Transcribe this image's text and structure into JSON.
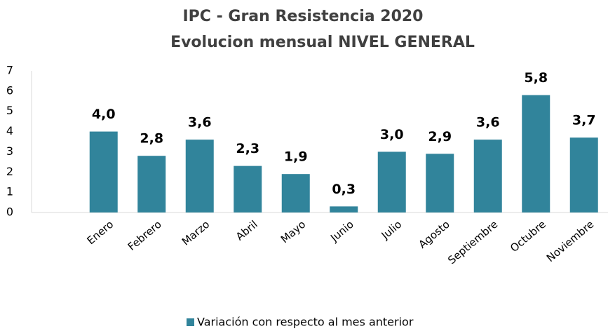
{
  "chart_data": {
    "type": "bar",
    "title": "IPC - Gran Resistencia  2020",
    "subtitle": "Evolucion mensual NIVEL GENERAL",
    "categories": [
      null,
      "Enero",
      "Febrero",
      "Marzo",
      "Abril",
      "Mayo",
      "Junio",
      "Julio",
      "Agosto",
      "Septiembre",
      "Octubre",
      "Noviembre"
    ],
    "series": [
      {
        "name": "Variación con respecto al mes anterior",
        "color": "#31849b",
        "values": [
          null,
          4.0,
          2.8,
          3.6,
          2.3,
          1.9,
          0.3,
          3.0,
          2.9,
          3.6,
          5.8,
          3.7
        ],
        "value_labels": [
          null,
          "4,0",
          "2,8",
          "3,6",
          "2,3",
          "1,9",
          "0,3",
          "3,0",
          "2,9",
          "3,6",
          "5,8",
          "3,7"
        ]
      }
    ],
    "ylim": [
      0,
      7
    ],
    "yticks": [
      0,
      1,
      2,
      3,
      4,
      5,
      6,
      7
    ],
    "legend": "bottom"
  }
}
